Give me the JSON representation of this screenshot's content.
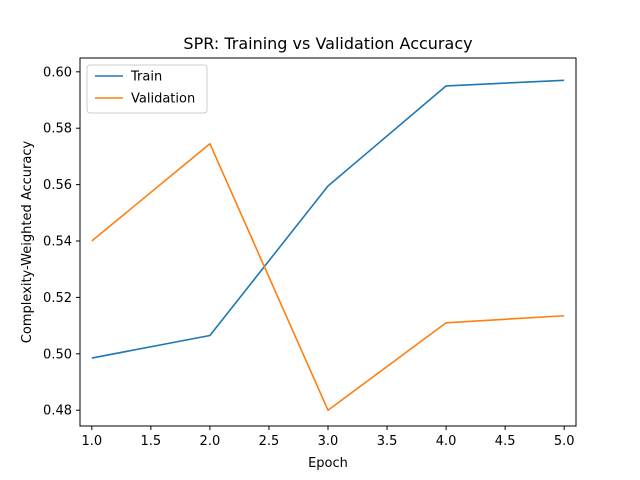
{
  "chart_data": {
    "type": "line",
    "title": "SPR: Training vs Validation Accuracy",
    "xlabel": "Epoch",
    "ylabel": "Complexity-Weighted Accuracy",
    "x": [
      1,
      2,
      3,
      4,
      5
    ],
    "xlim": [
      0.9,
      5.1
    ],
    "ylim": [
      0.4744,
      0.6049
    ],
    "xticks": [
      1.0,
      1.5,
      2.0,
      2.5,
      3.0,
      3.5,
      4.0,
      4.5,
      5.0
    ],
    "xtick_labels": [
      "1.0",
      "1.5",
      "2.0",
      "2.5",
      "3.0",
      "3.5",
      "4.0",
      "4.5",
      "5.0"
    ],
    "yticks": [
      0.48,
      0.5,
      0.52,
      0.54,
      0.56,
      0.58,
      0.6
    ],
    "ytick_labels": [
      "0.48",
      "0.50",
      "0.52",
      "0.54",
      "0.56",
      "0.58",
      "0.60"
    ],
    "grid": false,
    "legend_position": "top-left",
    "series": [
      {
        "name": "Train",
        "color": "#1f77b4",
        "values": [
          0.4985,
          0.5065,
          0.5595,
          0.595,
          0.597
        ]
      },
      {
        "name": "Validation",
        "color": "#ff7f0e",
        "values": [
          0.54,
          0.5745,
          0.48,
          0.511,
          0.5135
        ]
      }
    ]
  }
}
